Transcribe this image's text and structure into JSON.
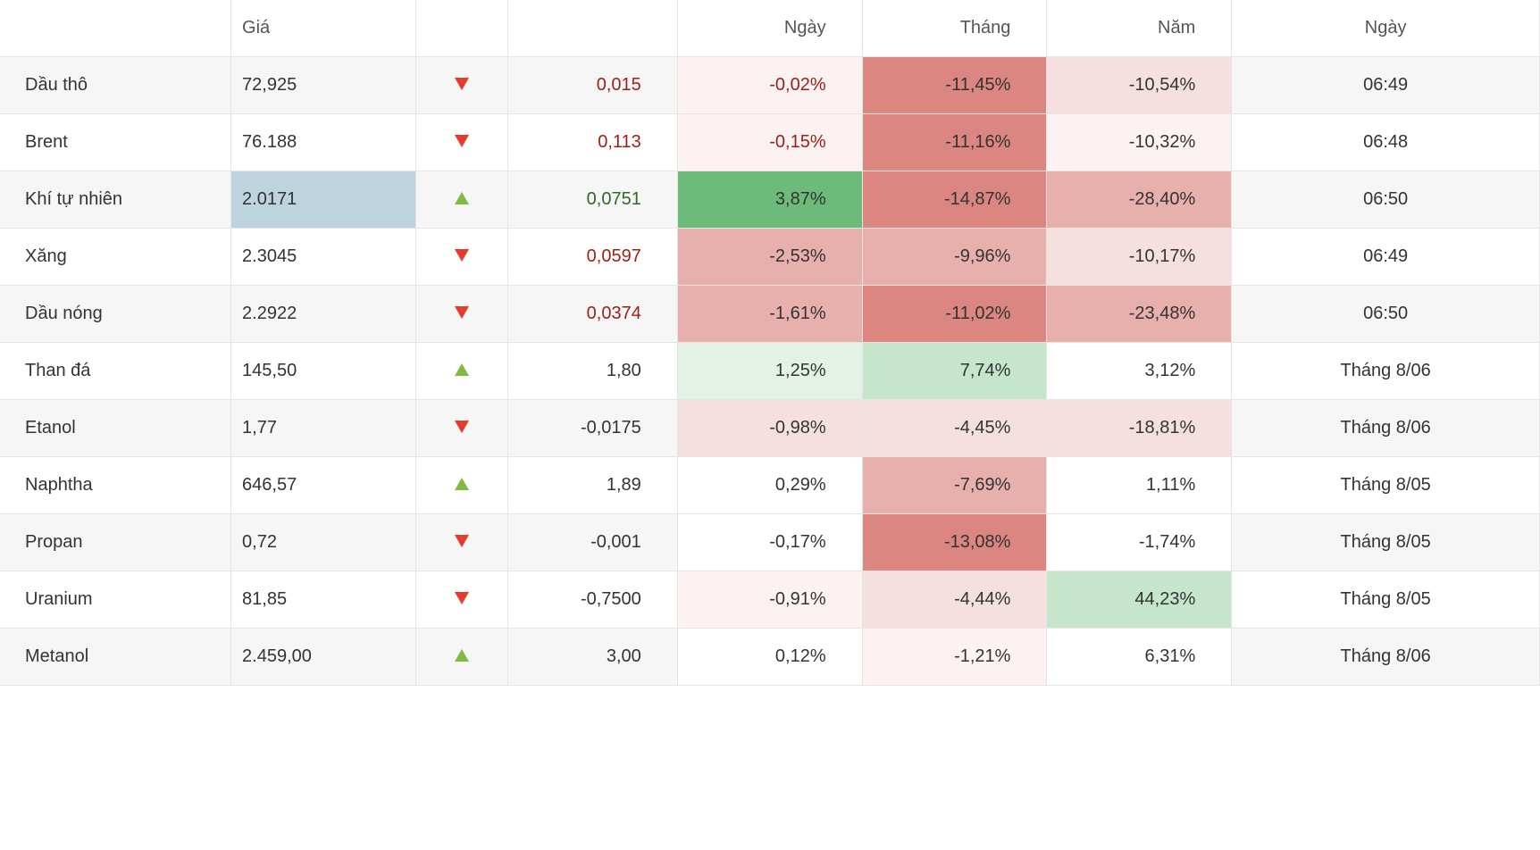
{
  "table": {
    "columns": {
      "name": "",
      "price": "Giá",
      "dir": "",
      "change": "",
      "day": "Ngày",
      "month": "Tháng",
      "year": "Năm",
      "date": "Ngày"
    },
    "col_widths": [
      "15%",
      "12%",
      "6%",
      "11%",
      "12%",
      "12%",
      "12%",
      "20%"
    ],
    "colors": {
      "text_default": "#333333",
      "up_arrow": "#7fba43",
      "down_arrow": "#e33b2d",
      "neg_text": "#9c1f15",
      "pos_text": "#2e6b1f",
      "neutral_text": "#333333",
      "row_alt_bg": "#f6f6f6",
      "price_highlight_bg": "#bdd4de",
      "heat_green_strong": "#6cbb7b",
      "heat_green_mid": "#c5e6ca",
      "heat_green_light": "#e3f2e5",
      "heat_red_strong": "#db8680",
      "heat_red_mid": "#e8b0ac",
      "heat_red_light": "#f5e0df",
      "heat_red_faint": "#fbf2f1",
      "heat_none": "transparent"
    },
    "rows": [
      {
        "name": "Dầu thô",
        "price": "72,925",
        "price_hl": false,
        "dir": "down",
        "change": "0,015",
        "change_color": "#9c1f15",
        "day": "-0,02%",
        "day_bg": "#fbf2f1",
        "day_color": "#9c1f15",
        "month": "-11,45%",
        "month_bg": "#db8680",
        "month_color": "#333333",
        "year": "-10,54%",
        "year_bg": "#f5e0df",
        "year_color": "#333333",
        "date": "06:49"
      },
      {
        "name": "Brent",
        "price": "76.188",
        "price_hl": false,
        "dir": "down",
        "change": "0,113",
        "change_color": "#9c1f15",
        "day": "-0,15%",
        "day_bg": "#fbf2f1",
        "day_color": "#9c1f15",
        "month": "-11,16%",
        "month_bg": "#db8680",
        "month_color": "#333333",
        "year": "-10,32%",
        "year_bg": "#fbf2f1",
        "year_color": "#333333",
        "date": "06:48"
      },
      {
        "name": "Khí tự nhiên",
        "price": "2.0171",
        "price_hl": true,
        "dir": "up",
        "change": "0,0751",
        "change_color": "#2e6b1f",
        "day": "3,87%",
        "day_bg": "#6cbb7b",
        "day_color": "#333333",
        "month": "-14,87%",
        "month_bg": "#db8680",
        "month_color": "#333333",
        "year": "-28,40%",
        "year_bg": "#e8b0ac",
        "year_color": "#333333",
        "date": "06:50"
      },
      {
        "name": "Xăng",
        "price": "2.3045",
        "price_hl": false,
        "dir": "down",
        "change": "0,0597",
        "change_color": "#9c1f15",
        "day": "-2,53%",
        "day_bg": "#e8b0ac",
        "day_color": "#333333",
        "month": "-9,96%",
        "month_bg": "#e8b0ac",
        "month_color": "#333333",
        "year": "-10,17%",
        "year_bg": "#f5e0df",
        "year_color": "#333333",
        "date": "06:49"
      },
      {
        "name": "Dầu nóng",
        "price": "2.2922",
        "price_hl": false,
        "dir": "down",
        "change": "0,0374",
        "change_color": "#9c1f15",
        "day": "-1,61%",
        "day_bg": "#e8b0ac",
        "day_color": "#333333",
        "month": "-11,02%",
        "month_bg": "#db8680",
        "month_color": "#333333",
        "year": "-23,48%",
        "year_bg": "#e8b0ac",
        "year_color": "#333333",
        "date": "06:50"
      },
      {
        "name": "Than đá",
        "price": "145,50",
        "price_hl": false,
        "dir": "up",
        "change": "1,80",
        "change_color": "#333333",
        "day": "1,25%",
        "day_bg": "#e3f2e5",
        "day_color": "#333333",
        "month": "7,74%",
        "month_bg": "#c5e6ca",
        "month_color": "#333333",
        "year": "3,12%",
        "year_bg": "transparent",
        "year_color": "#333333",
        "date": "Tháng 8/06"
      },
      {
        "name": "Etanol",
        "price": "1,77",
        "price_hl": false,
        "dir": "down",
        "change": "-0,0175",
        "change_color": "#333333",
        "day": "-0,98%",
        "day_bg": "#f5e0df",
        "day_color": "#333333",
        "month": "-4,45%",
        "month_bg": "#f5e0df",
        "month_color": "#333333",
        "year": "-18,81%",
        "year_bg": "#f5e0df",
        "year_color": "#333333",
        "date": "Tháng 8/06"
      },
      {
        "name": "Naphtha",
        "price": "646,57",
        "price_hl": false,
        "dir": "up",
        "change": "1,89",
        "change_color": "#333333",
        "day": "0,29%",
        "day_bg": "transparent",
        "day_color": "#333333",
        "month": "-7,69%",
        "month_bg": "#e8b0ac",
        "month_color": "#333333",
        "year": "1,11%",
        "year_bg": "transparent",
        "year_color": "#333333",
        "date": "Tháng 8/05"
      },
      {
        "name": "Propan",
        "price": "0,72",
        "price_hl": false,
        "dir": "down",
        "change": "-0,001",
        "change_color": "#333333",
        "day": "-0,17%",
        "day_bg": "transparent",
        "day_color": "#333333",
        "month": "-13,08%",
        "month_bg": "#db8680",
        "month_color": "#333333",
        "year": "-1,74%",
        "year_bg": "transparent",
        "year_color": "#333333",
        "date": "Tháng 8/05"
      },
      {
        "name": "Uranium",
        "price": "81,85",
        "price_hl": false,
        "dir": "down",
        "change": "-0,7500",
        "change_color": "#333333",
        "day": "-0,91%",
        "day_bg": "#fbf2f1",
        "day_color": "#333333",
        "month": "-4,44%",
        "month_bg": "#f5e0df",
        "month_color": "#333333",
        "year": "44,23%",
        "year_bg": "#c5e6ca",
        "year_color": "#333333",
        "date": "Tháng 8/05"
      },
      {
        "name": "Metanol",
        "price": "2.459,00",
        "price_hl": false,
        "dir": "up",
        "change": "3,00",
        "change_color": "#333333",
        "day": "0,12%",
        "day_bg": "transparent",
        "day_color": "#333333",
        "month": "-1,21%",
        "month_bg": "#fbf2f1",
        "month_color": "#333333",
        "year": "6,31%",
        "year_bg": "transparent",
        "year_color": "#333333",
        "date": "Tháng 8/06"
      }
    ]
  }
}
